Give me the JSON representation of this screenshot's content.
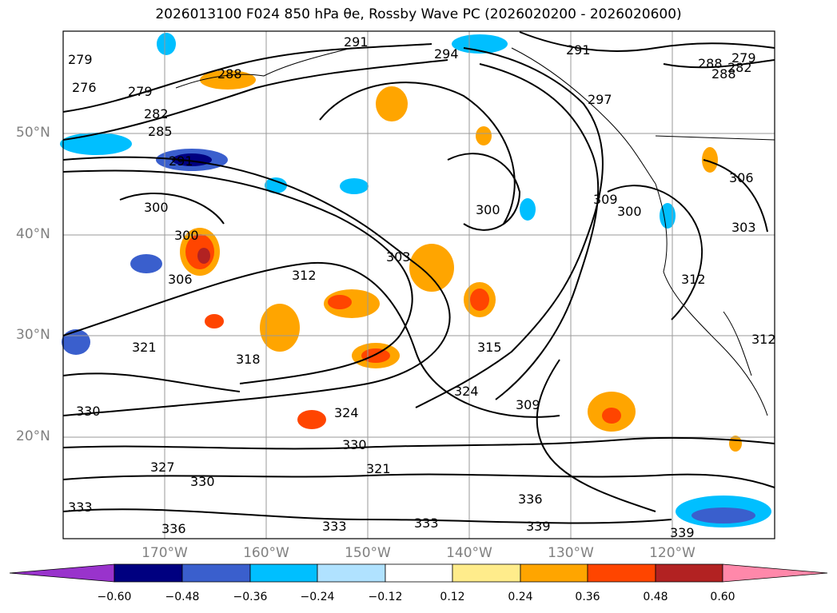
{
  "title": "2026013100 F024 850 hPa θe, Rossby Wave PC (2026020200 - 2026020600)",
  "lat_labels": [
    "50°N",
    "40°N",
    "30°N",
    "20°N"
  ],
  "lon_labels": [
    "170°W",
    "160°W",
    "150°W",
    "140°W",
    "130°W",
    "120°W"
  ],
  "contour_labels": [
    "279",
    "276",
    "279",
    "282",
    "285",
    "288",
    "291",
    "291",
    "294",
    "291",
    "288",
    "288",
    "282",
    "279",
    "297",
    "300",
    "300",
    "300",
    "300",
    "303",
    "303",
    "306",
    "306",
    "309",
    "312",
    "312",
    "312",
    "315",
    "318",
    "321",
    "321",
    "324",
    "324",
    "327",
    "330",
    "330",
    "330",
    "333",
    "333",
    "333",
    "336",
    "336",
    "339",
    "339",
    "309"
  ],
  "colorbar": {
    "colors": [
      "#9933cc",
      "#000080",
      "#3a5fcd",
      "#00bfff",
      "#b0e2ff",
      "#ffffff",
      "#ffec8b",
      "#ffa500",
      "#ff4500",
      "#b22222",
      "#ff88aa"
    ],
    "tick_labels": [
      "−0.60",
      "−0.48",
      "−0.36",
      "−0.24",
      "−0.12",
      "0.12",
      "0.24",
      "0.36",
      "0.48",
      "0.60"
    ]
  }
}
